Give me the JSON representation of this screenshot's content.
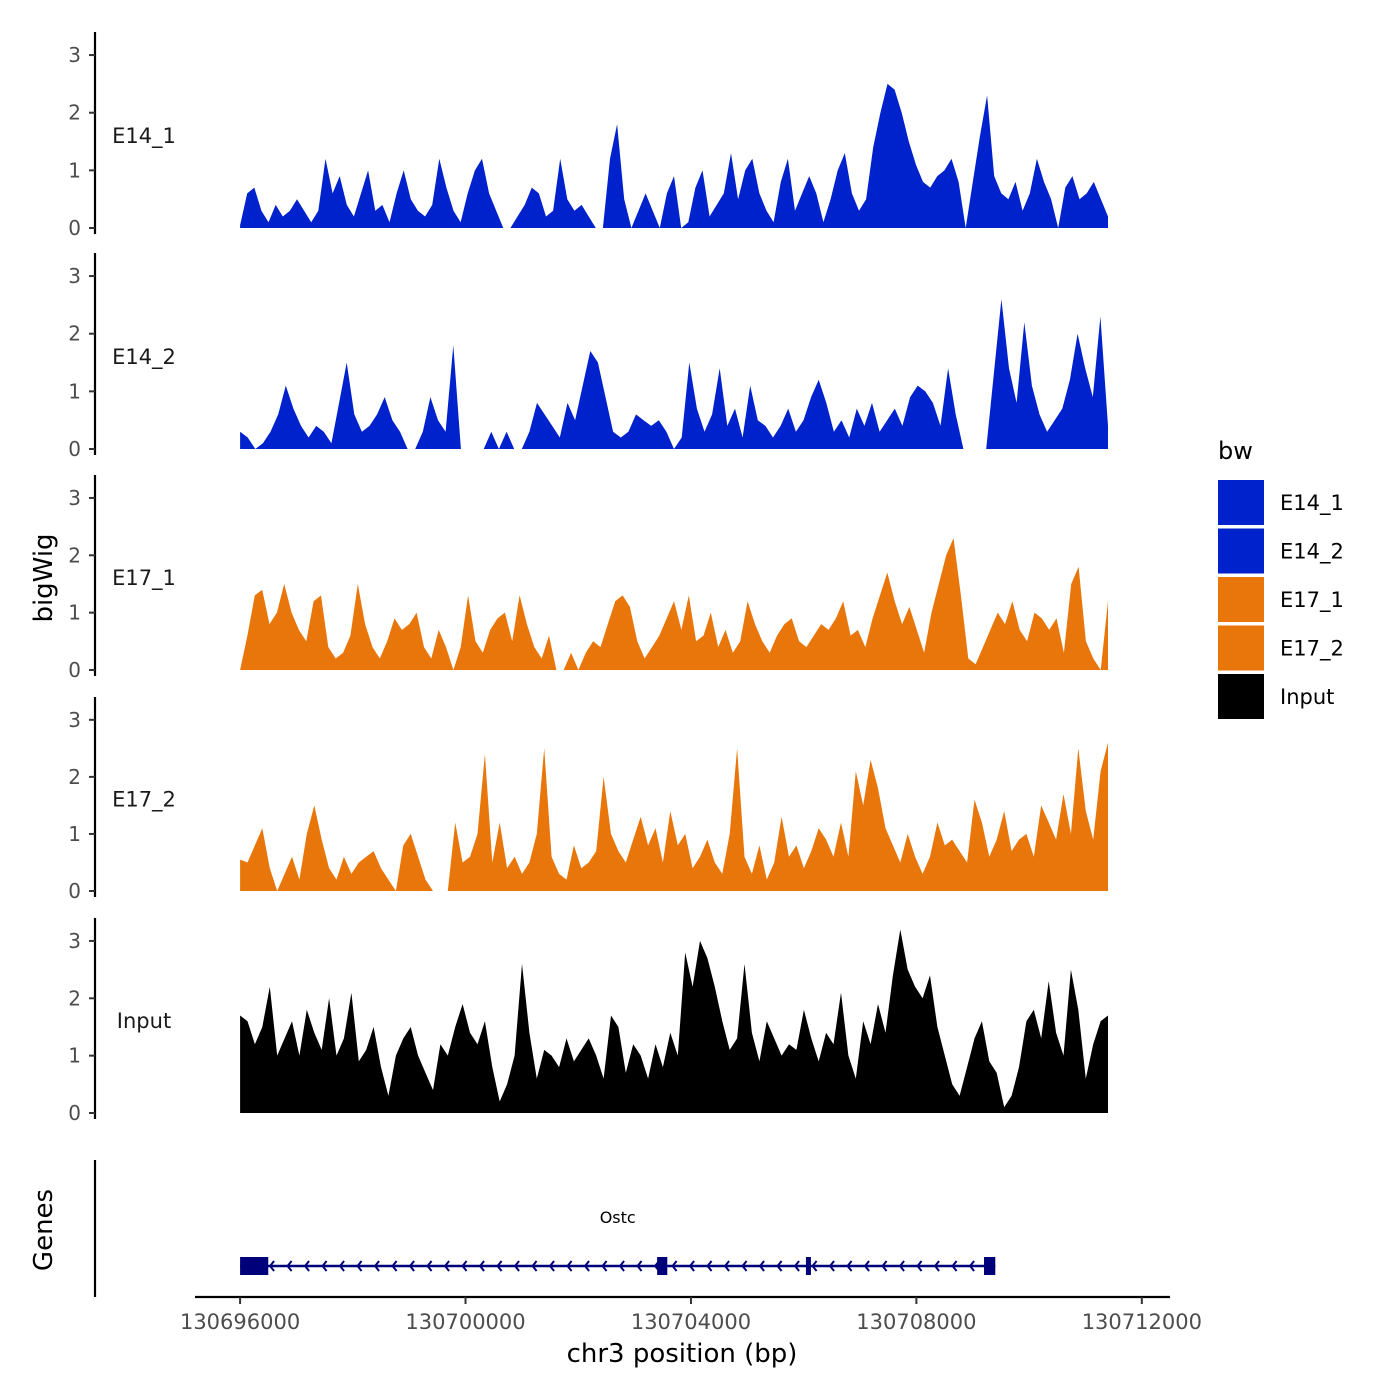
{
  "chart_data": {
    "type": "area",
    "title": "",
    "xlabel": "chr3 position (bp)",
    "ylabel": "bigWig",
    "xlim": [
      130695200,
      130712500
    ],
    "xticks": [
      130696000,
      130700000,
      130704000,
      130708000,
      130712000
    ],
    "xtick_labels": [
      "130696000",
      "130700000",
      "130704000",
      "130708000",
      "130712000"
    ],
    "ylim": [
      0,
      3.4
    ],
    "yticks": [
      0,
      1,
      2,
      3
    ],
    "ytick_labels": [
      "0",
      "1",
      "2",
      "3"
    ],
    "data_range": [
      130696000,
      130711400
    ],
    "legend": {
      "title": "bw",
      "position": "right",
      "entries": [
        {
          "label": "E14_1",
          "color": "#0022cc"
        },
        {
          "label": "E14_2",
          "color": "#0022cc"
        },
        {
          "label": "E17_1",
          "color": "#e8760a"
        },
        {
          "label": "E17_2",
          "color": "#e8760a"
        },
        {
          "label": "Input",
          "color": "#000000"
        }
      ]
    },
    "series": [
      {
        "name": "E14_1",
        "color": "#0022cc",
        "values": [
          0.05,
          0.6,
          0.7,
          0.3,
          0.1,
          0.4,
          0.2,
          0.3,
          0.5,
          0.3,
          0.1,
          0.3,
          1.2,
          0.6,
          0.9,
          0.4,
          0.2,
          0.6,
          1.0,
          0.3,
          0.4,
          0.1,
          0.6,
          1.0,
          0.5,
          0.3,
          0.2,
          0.4,
          1.2,
          0.7,
          0.3,
          0.1,
          0.6,
          1.0,
          1.2,
          0.6,
          0.3,
          0.0,
          0.0,
          0.2,
          0.4,
          0.7,
          0.6,
          0.2,
          0.3,
          1.2,
          0.5,
          0.3,
          0.4,
          0.2,
          0.0,
          0.0,
          1.2,
          1.8,
          0.5,
          0.0,
          0.3,
          0.6,
          0.3,
          0.0,
          0.6,
          0.9,
          0.0,
          0.1,
          0.7,
          1.0,
          0.2,
          0.4,
          0.6,
          1.3,
          0.5,
          1.0,
          1.2,
          0.6,
          0.3,
          0.1,
          0.8,
          1.2,
          0.3,
          0.6,
          0.9,
          0.6,
          0.1,
          0.5,
          1.0,
          1.3,
          0.6,
          0.3,
          0.5,
          1.4,
          2.0,
          2.5,
          2.4,
          2.0,
          1.5,
          1.1,
          0.8,
          0.7,
          0.9,
          1.0,
          1.2,
          0.8,
          0.0,
          0.8,
          1.6,
          2.3,
          0.9,
          0.6,
          0.5,
          0.8,
          0.3,
          0.6,
          1.2,
          0.8,
          0.5,
          0.0,
          0.7,
          0.9,
          0.5,
          0.6,
          0.8,
          0.5,
          0.2
        ]
      },
      {
        "name": "E14_2",
        "color": "#0022cc",
        "values": [
          0.3,
          0.2,
          0.0,
          0.1,
          0.3,
          0.6,
          1.1,
          0.7,
          0.4,
          0.2,
          0.4,
          0.3,
          0.1,
          0.8,
          1.5,
          0.6,
          0.3,
          0.4,
          0.6,
          0.9,
          0.5,
          0.3,
          0.0,
          0.0,
          0.3,
          0.9,
          0.5,
          0.3,
          1.8,
          0.0,
          0.0,
          0.0,
          0.0,
          0.3,
          0.0,
          0.3,
          0.0,
          0.0,
          0.3,
          0.8,
          0.6,
          0.4,
          0.2,
          0.8,
          0.5,
          1.1,
          1.7,
          1.5,
          0.9,
          0.3,
          0.2,
          0.3,
          0.6,
          0.5,
          0.4,
          0.5,
          0.3,
          0.0,
          0.2,
          1.5,
          0.7,
          0.3,
          0.6,
          1.4,
          0.4,
          0.7,
          0.2,
          1.1,
          0.5,
          0.4,
          0.2,
          0.4,
          0.7,
          0.3,
          0.5,
          0.9,
          1.2,
          0.8,
          0.3,
          0.5,
          0.2,
          0.7,
          0.4,
          0.8,
          0.3,
          0.5,
          0.7,
          0.4,
          0.9,
          1.1,
          1.0,
          0.8,
          0.4,
          1.4,
          0.6,
          0.0,
          0.0,
          0.0,
          0.0,
          1.3,
          2.6,
          1.4,
          0.8,
          2.2,
          1.1,
          0.6,
          0.3,
          0.5,
          0.7,
          1.2,
          2.0,
          1.4,
          0.9,
          2.3,
          0.4
        ]
      },
      {
        "name": "E17_1",
        "color": "#e8760a",
        "values": [
          0.0,
          0.6,
          1.3,
          1.4,
          0.8,
          1.0,
          1.5,
          1.0,
          0.7,
          0.5,
          1.2,
          1.3,
          0.4,
          0.2,
          0.3,
          0.6,
          1.5,
          0.8,
          0.4,
          0.2,
          0.5,
          0.9,
          0.7,
          0.8,
          1.0,
          0.4,
          0.2,
          0.7,
          0.4,
          0.0,
          0.4,
          1.3,
          0.5,
          0.3,
          0.7,
          0.9,
          1.0,
          0.5,
          1.3,
          0.8,
          0.4,
          0.2,
          0.6,
          0.0,
          0.0,
          0.3,
          0.0,
          0.3,
          0.5,
          0.4,
          0.8,
          1.2,
          1.3,
          1.1,
          0.5,
          0.2,
          0.4,
          0.6,
          0.9,
          1.2,
          0.7,
          1.3,
          0.5,
          0.6,
          1.0,
          0.4,
          0.7,
          0.3,
          0.5,
          1.2,
          0.8,
          0.5,
          0.3,
          0.6,
          0.8,
          0.9,
          0.5,
          0.4,
          0.6,
          0.8,
          0.7,
          0.9,
          1.2,
          0.6,
          0.7,
          0.4,
          0.9,
          1.3,
          1.7,
          1.2,
          0.8,
          1.1,
          0.7,
          0.3,
          1.0,
          1.5,
          2.0,
          2.3,
          1.3,
          0.2,
          0.1,
          0.4,
          0.7,
          1.0,
          0.8,
          1.2,
          0.7,
          0.5,
          1.0,
          0.9,
          0.7,
          0.9,
          0.3,
          1.5,
          1.8,
          0.5,
          0.2,
          0.0,
          1.2
        ]
      },
      {
        "name": "E17_2",
        "color": "#e8760a",
        "values": [
          0.55,
          0.5,
          0.8,
          1.1,
          0.4,
          0.0,
          0.3,
          0.6,
          0.2,
          1.0,
          1.5,
          0.9,
          0.4,
          0.2,
          0.6,
          0.3,
          0.5,
          0.6,
          0.7,
          0.4,
          0.2,
          0.0,
          0.8,
          1.0,
          0.6,
          0.2,
          0.0,
          0.0,
          0.0,
          1.2,
          0.5,
          0.6,
          1.0,
          2.4,
          0.5,
          1.2,
          0.4,
          0.6,
          0.3,
          0.5,
          1.0,
          2.5,
          0.6,
          0.3,
          0.2,
          0.8,
          0.4,
          0.5,
          0.7,
          2.0,
          1.0,
          0.7,
          0.5,
          0.9,
          1.3,
          0.8,
          1.1,
          0.5,
          1.4,
          0.8,
          1.0,
          0.4,
          0.6,
          0.9,
          0.5,
          0.3,
          1.0,
          2.5,
          0.6,
          0.3,
          0.8,
          0.2,
          0.5,
          1.3,
          0.6,
          0.8,
          0.4,
          0.7,
          1.1,
          0.9,
          0.6,
          1.2,
          0.6,
          2.1,
          1.5,
          2.3,
          1.8,
          1.1,
          0.8,
          0.5,
          1.0,
          0.6,
          0.3,
          0.6,
          1.2,
          0.8,
          0.9,
          0.7,
          0.5,
          1.6,
          1.2,
          0.6,
          0.9,
          1.4,
          0.7,
          0.9,
          1.0,
          0.6,
          1.5,
          1.2,
          0.9,
          1.7,
          1.0,
          2.5,
          1.4,
          0.9,
          2.1,
          2.6
        ]
      },
      {
        "name": "Input",
        "color": "#000000",
        "values": [
          1.7,
          1.6,
          1.2,
          1.5,
          2.2,
          1.0,
          1.3,
          1.6,
          1.0,
          1.8,
          1.4,
          1.1,
          2.0,
          1.0,
          1.3,
          2.1,
          0.9,
          1.1,
          1.5,
          0.8,
          0.3,
          1.0,
          1.3,
          1.5,
          1.0,
          0.7,
          0.4,
          1.2,
          1.0,
          1.5,
          1.9,
          1.4,
          1.2,
          1.6,
          0.8,
          0.2,
          0.5,
          1.0,
          2.6,
          1.4,
          0.6,
          1.1,
          1.0,
          0.8,
          1.3,
          0.9,
          1.1,
          1.3,
          1.0,
          0.6,
          1.7,
          1.5,
          0.7,
          1.2,
          1.0,
          0.6,
          1.2,
          0.8,
          1.4,
          1.0,
          2.8,
          2.2,
          3.0,
          2.7,
          2.2,
          1.6,
          1.1,
          1.3,
          2.6,
          1.4,
          0.9,
          1.6,
          1.3,
          1.0,
          1.2,
          1.1,
          1.8,
          1.3,
          0.9,
          1.4,
          1.2,
          2.1,
          1.0,
          0.6,
          1.6,
          1.2,
          1.9,
          1.4,
          2.4,
          3.2,
          2.5,
          2.2,
          2.0,
          2.4,
          1.5,
          1.0,
          0.5,
          0.3,
          0.8,
          1.3,
          1.6,
          0.9,
          0.7,
          0.1,
          0.3,
          0.8,
          1.6,
          1.8,
          1.3,
          2.3,
          1.4,
          1.0,
          2.5,
          1.8,
          0.6,
          1.2,
          1.6,
          1.7
        ]
      }
    ],
    "genes": {
      "track_label": "Genes",
      "items": [
        {
          "name": "Ostc",
          "start": 130696000,
          "end": 130709400,
          "strand": "-",
          "exons": [
            [
              130696000,
              130696500
            ],
            [
              130703400,
              130703580
            ],
            [
              130706040,
              130706120
            ],
            [
              130709200,
              130709400
            ]
          ]
        }
      ]
    }
  }
}
